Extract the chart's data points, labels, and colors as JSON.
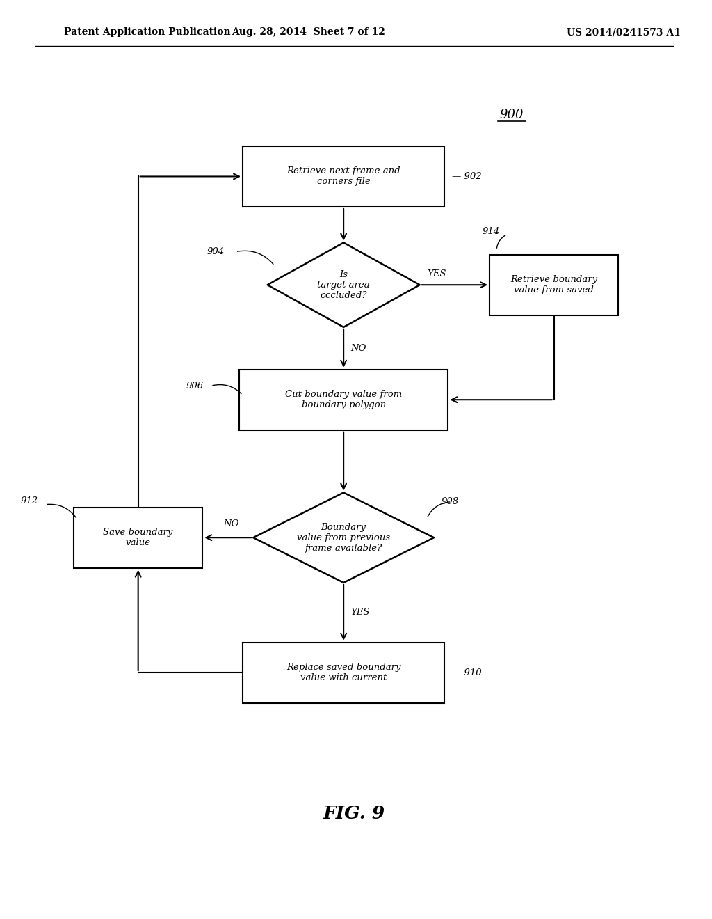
{
  "bg_color": "#ffffff",
  "header_left": "Patent Application Publication",
  "header_mid": "Aug. 28, 2014  Sheet 7 of 12",
  "header_right": "US 2014/0241573 A1",
  "fig_label": "FIG. 9",
  "diagram_ref": "900"
}
